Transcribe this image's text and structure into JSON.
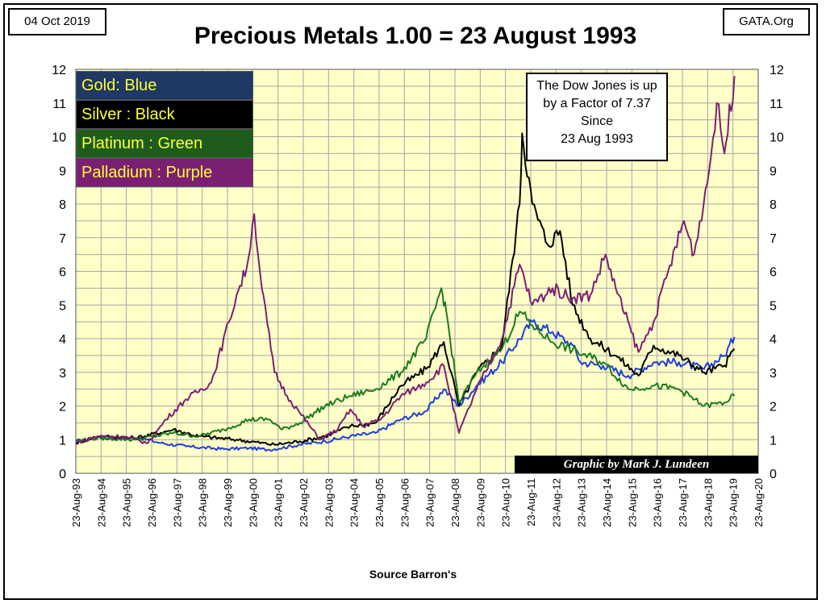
{
  "header": {
    "date": "04 Oct 2019",
    "source": "GATA.Org",
    "title": "Precious Metals  1.00 = 23 August 1993"
  },
  "legend": [
    {
      "label": "Gold: Blue",
      "bg": "#1f3864"
    },
    {
      "label": "Silver : Black",
      "bg": "#000000"
    },
    {
      "label": "Platinum : Green",
      "bg": "#1e5c1e"
    },
    {
      "label": "Palladium : Purple",
      "bg": "#7b1f73"
    }
  ],
  "note": {
    "lines": [
      "The Dow Jones is up",
      "by a Factor of 7.37",
      "Since",
      "23 Aug 1993"
    ]
  },
  "credit": "Graphic by Mark J. Lundeen",
  "footer": "Source Barron's",
  "colors": {
    "plot_bg": "#ffffc8",
    "grid": "#a6a6a6",
    "gold": "#1f3fd6",
    "silver": "#000000",
    "platinum": "#1f7a1f",
    "palladium": "#7b1f73"
  },
  "chart_data": {
    "type": "line",
    "title": "Precious Metals  1.00 = 23 August 1993",
    "xlabel": "Source Barron's",
    "ylabel": "",
    "ylim": [
      0,
      12
    ],
    "xlim": [
      1993.64,
      2020.64
    ],
    "yticks": [
      0,
      1,
      2,
      3,
      4,
      5,
      6,
      7,
      8,
      9,
      10,
      11,
      12
    ],
    "xticks": [
      "23-Aug-93",
      "23-Aug-94",
      "23-Aug-95",
      "23-Aug-96",
      "23-Aug-97",
      "23-Aug-98",
      "23-Aug-99",
      "23-Aug-00",
      "23-Aug-01",
      "23-Aug-02",
      "23-Aug-03",
      "23-Aug-04",
      "23-Aug-05",
      "23-Aug-06",
      "23-Aug-07",
      "23-Aug-08",
      "23-Aug-09",
      "23-Aug-10",
      "23-Aug-11",
      "23-Aug-12",
      "23-Aug-13",
      "23-Aug-14",
      "23-Aug-15",
      "23-Aug-16",
      "23-Aug-17",
      "23-Aug-18",
      "23-Aug-19",
      "23-Aug-20"
    ],
    "grid": true,
    "legend_position": "top-left",
    "series": [
      {
        "name": "Gold: Blue",
        "color": "#1f3fd6",
        "points": [
          [
            1993.64,
            0.95
          ],
          [
            1994.5,
            1.05
          ],
          [
            1995.5,
            1.05
          ],
          [
            1996.2,
            1.05
          ],
          [
            1997.0,
            0.9
          ],
          [
            1998.0,
            0.8
          ],
          [
            1999.5,
            0.72
          ],
          [
            2000.5,
            0.75
          ],
          [
            2001.3,
            0.7
          ],
          [
            2002.5,
            0.85
          ],
          [
            2003.5,
            0.95
          ],
          [
            2004.5,
            1.1
          ],
          [
            2005.5,
            1.2
          ],
          [
            2006.5,
            1.6
          ],
          [
            2007.5,
            1.85
          ],
          [
            2008.2,
            2.5
          ],
          [
            2008.8,
            2.0
          ],
          [
            2009.5,
            2.6
          ],
          [
            2010.5,
            3.3
          ],
          [
            2011.7,
            4.5
          ],
          [
            2012.5,
            4.2
          ],
          [
            2013.3,
            3.8
          ],
          [
            2013.6,
            3.3
          ],
          [
            2014.5,
            3.2
          ],
          [
            2015.5,
            2.9
          ],
          [
            2016.5,
            3.3
          ],
          [
            2017.5,
            3.3
          ],
          [
            2018.5,
            3.1
          ],
          [
            2019.3,
            3.5
          ],
          [
            2019.7,
            4.05
          ]
        ]
      },
      {
        "name": "Silver : Black",
        "color": "#000000",
        "points": [
          [
            1993.64,
            0.9
          ],
          [
            1994.5,
            1.1
          ],
          [
            1996.0,
            1.05
          ],
          [
            1997.5,
            1.3
          ],
          [
            1998.5,
            1.1
          ],
          [
            2000.0,
            1.0
          ],
          [
            2001.5,
            0.85
          ],
          [
            2002.5,
            0.95
          ],
          [
            2003.5,
            1.1
          ],
          [
            2004.5,
            1.4
          ],
          [
            2005.5,
            1.5
          ],
          [
            2006.5,
            2.6
          ],
          [
            2007.5,
            3.1
          ],
          [
            2008.2,
            3.9
          ],
          [
            2008.8,
            2.0
          ],
          [
            2009.5,
            3.0
          ],
          [
            2010.5,
            3.8
          ],
          [
            2011.2,
            8.0
          ],
          [
            2011.3,
            10.1
          ],
          [
            2011.7,
            8.0
          ],
          [
            2012.3,
            6.8
          ],
          [
            2012.8,
            7.2
          ],
          [
            2013.3,
            5.0
          ],
          [
            2014.0,
            4.0
          ],
          [
            2015.0,
            3.5
          ],
          [
            2015.9,
            2.9
          ],
          [
            2016.5,
            3.8
          ],
          [
            2017.5,
            3.5
          ],
          [
            2018.5,
            3.0
          ],
          [
            2019.3,
            3.2
          ],
          [
            2019.7,
            3.7
          ]
        ]
      },
      {
        "name": "Platinum : Green",
        "color": "#1f7a1f",
        "points": [
          [
            1993.64,
            0.95
          ],
          [
            1994.5,
            1.05
          ],
          [
            1996.0,
            1.0
          ],
          [
            1997.5,
            1.2
          ],
          [
            1998.5,
            1.1
          ],
          [
            1999.5,
            1.3
          ],
          [
            2000.5,
            1.6
          ],
          [
            2001.3,
            1.6
          ],
          [
            2001.8,
            1.3
          ],
          [
            2002.5,
            1.5
          ],
          [
            2003.5,
            2.0
          ],
          [
            2004.5,
            2.3
          ],
          [
            2005.5,
            2.5
          ],
          [
            2006.5,
            3.0
          ],
          [
            2007.5,
            4.0
          ],
          [
            2008.1,
            5.5
          ],
          [
            2008.3,
            4.8
          ],
          [
            2008.8,
            2.1
          ],
          [
            2009.5,
            3.0
          ],
          [
            2010.5,
            3.7
          ],
          [
            2011.2,
            4.8
          ],
          [
            2011.7,
            4.4
          ],
          [
            2012.5,
            3.9
          ],
          [
            2013.5,
            3.6
          ],
          [
            2014.5,
            3.3
          ],
          [
            2015.5,
            2.5
          ],
          [
            2016.5,
            2.6
          ],
          [
            2017.5,
            2.5
          ],
          [
            2018.5,
            2.0
          ],
          [
            2019.3,
            2.1
          ],
          [
            2019.7,
            2.3
          ]
        ]
      },
      {
        "name": "Palladium : Purple",
        "color": "#7b1f73",
        "points": [
          [
            1993.64,
            0.9
          ],
          [
            1994.5,
            1.1
          ],
          [
            1995.5,
            1.1
          ],
          [
            1996.5,
            0.9
          ],
          [
            1997.2,
            1.6
          ],
          [
            1998.0,
            2.2
          ],
          [
            1999.0,
            2.7
          ],
          [
            1999.7,
            4.5
          ],
          [
            2000.0,
            5.3
          ],
          [
            2000.4,
            6.1
          ],
          [
            2000.7,
            7.7
          ],
          [
            2001.0,
            5.5
          ],
          [
            2001.5,
            3.0
          ],
          [
            2002.0,
            2.3
          ],
          [
            2002.5,
            1.8
          ],
          [
            2003.3,
            1.0
          ],
          [
            2004.0,
            1.3
          ],
          [
            2004.5,
            1.9
          ],
          [
            2005.0,
            1.4
          ],
          [
            2005.7,
            1.6
          ],
          [
            2006.5,
            2.3
          ],
          [
            2007.5,
            2.7
          ],
          [
            2008.2,
            3.2
          ],
          [
            2008.8,
            1.2
          ],
          [
            2009.5,
            2.5
          ],
          [
            2010.5,
            4.0
          ],
          [
            2011.2,
            6.2
          ],
          [
            2011.7,
            5.0
          ],
          [
            2012.5,
            5.5
          ],
          [
            2013.3,
            5.2
          ],
          [
            2014.0,
            5.3
          ],
          [
            2014.6,
            6.5
          ],
          [
            2015.0,
            5.5
          ],
          [
            2015.9,
            3.6
          ],
          [
            2016.5,
            4.5
          ],
          [
            2017.0,
            5.8
          ],
          [
            2017.7,
            7.5
          ],
          [
            2018.1,
            6.5
          ],
          [
            2018.7,
            9.0
          ],
          [
            2019.0,
            11.0
          ],
          [
            2019.3,
            9.5
          ],
          [
            2019.7,
            11.8
          ]
        ]
      }
    ]
  }
}
